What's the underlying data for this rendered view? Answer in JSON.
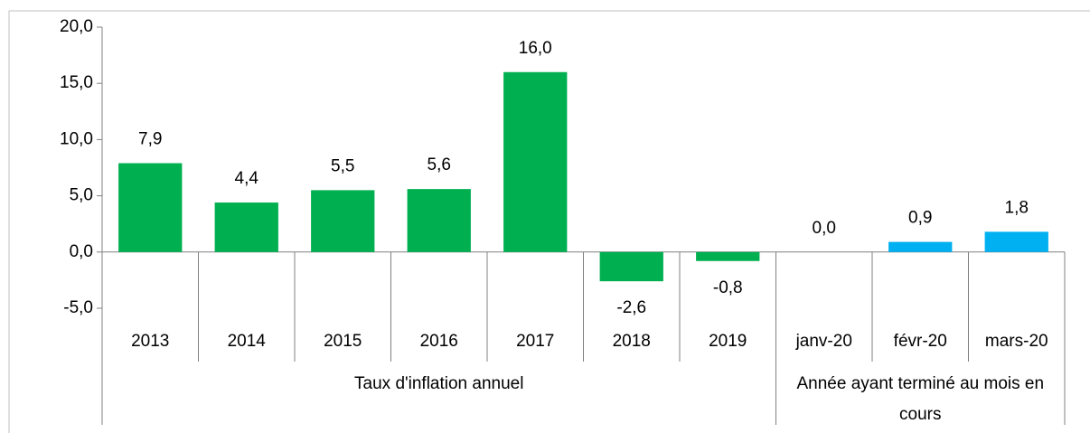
{
  "chart_data": {
    "type": "bar",
    "ylim": [
      -5,
      20
    ],
    "yticks": [
      {
        "value": -5,
        "label": "-5,0"
      },
      {
        "value": 0,
        "label": "0,0"
      },
      {
        "value": 5,
        "label": "5,0"
      },
      {
        "value": 10,
        "label": "10,0"
      },
      {
        "value": 15,
        "label": "15,0"
      },
      {
        "value": 20,
        "label": "20,0"
      }
    ],
    "groups": [
      {
        "label": "Taux d'inflation annuel",
        "color": "#00b050",
        "categories": [
          "2013",
          "2014",
          "2015",
          "2016",
          "2017",
          "2018",
          "2019"
        ],
        "values": [
          7.9,
          4.4,
          5.5,
          5.6,
          16.0,
          -2.6,
          -0.8
        ],
        "value_labels": [
          "7,9",
          "4,4",
          "5,5",
          "5,6",
          "16,0",
          "-2,6",
          "-0,8"
        ]
      },
      {
        "label": "Année ayant terminé au mois en cours",
        "color": "#00b0f0",
        "categories": [
          "janv-20",
          "févr-20",
          "mars-20"
        ],
        "values": [
          0.0,
          0.9,
          1.8
        ],
        "value_labels": [
          "0,0",
          "0,9",
          "1,8"
        ]
      }
    ]
  }
}
